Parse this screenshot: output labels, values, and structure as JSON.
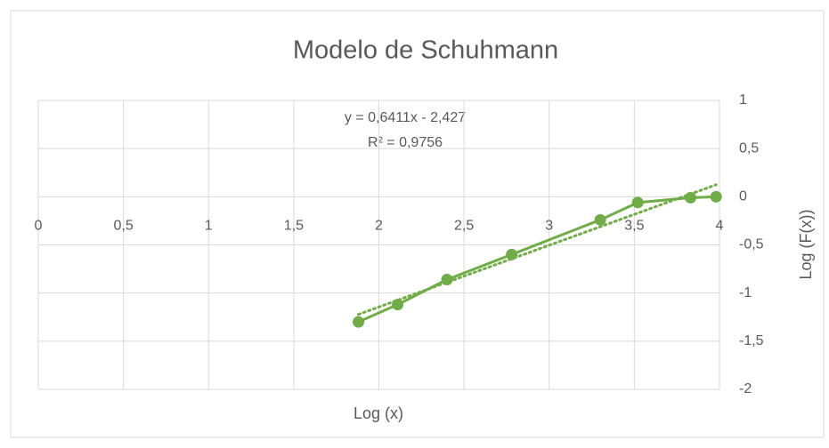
{
  "chart_data": {
    "type": "scatter",
    "title": "Modelo de Schuhmann",
    "x_label": "Log (x)",
    "y_label": "Log  (F(x))",
    "series": [
      {
        "color": "#70ad47",
        "x": [
          1.88,
          2.11,
          2.4,
          2.78,
          3.3,
          3.52,
          3.83,
          3.98
        ],
        "values": [
          -1.3,
          -1.12,
          -0.86,
          -0.6,
          -0.24,
          -0.06,
          -0.01,
          0
        ]
      }
    ],
    "trendline": {
      "slope": 0.6411,
      "intercept": -2.427,
      "equation": "y = 0,6411x - 2,427",
      "r2": "R² = 0,9756"
    },
    "xlim": [
      0,
      4
    ],
    "ylim": [
      -2,
      1
    ],
    "xticks": [
      0,
      {
        "value": 0.5,
        "label": "0,5"
      },
      1,
      {
        "value": 1.5,
        "label": "1,5"
      },
      2,
      {
        "value": 2.5,
        "label": "2,5"
      },
      3,
      {
        "value": 3.5,
        "label": "3,5"
      },
      4
    ],
    "yticks": [
      -2,
      {
        "value": -1.5,
        "label": "-1,5"
      },
      -1,
      {
        "value": -0.5,
        "label": "-0,5"
      },
      0,
      {
        "value": 0.5,
        "label": "0,5"
      },
      1
    ],
    "y_axis_side": "right",
    "grid": true
  }
}
